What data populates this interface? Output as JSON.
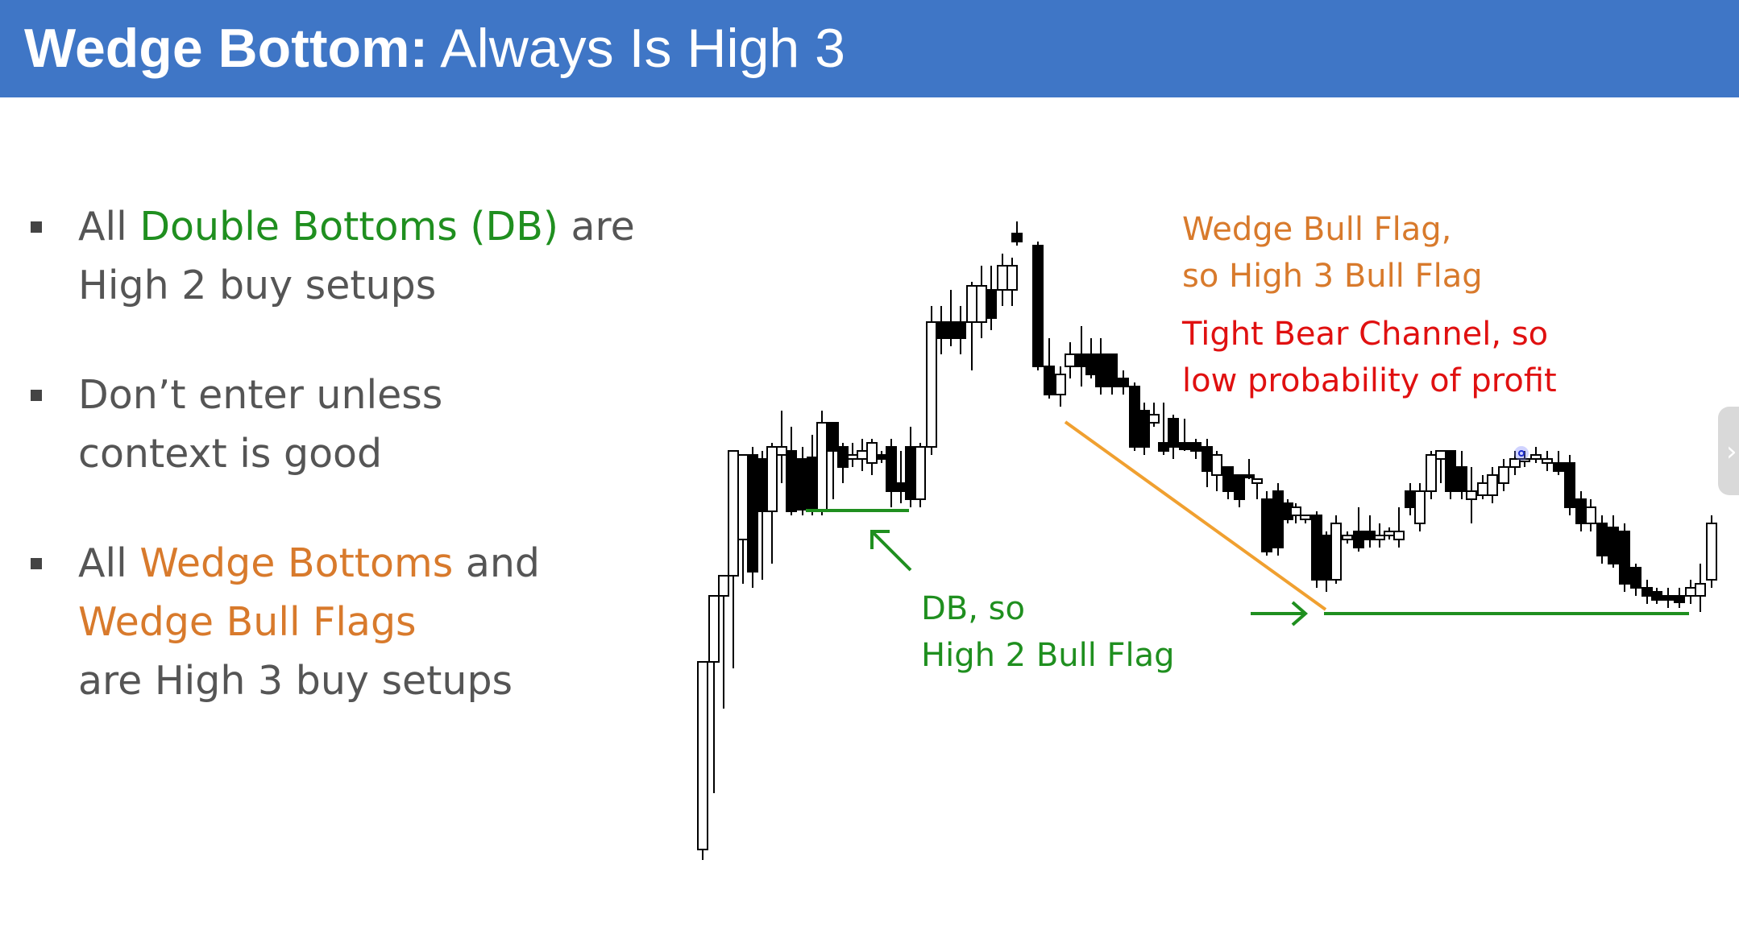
{
  "slide": {
    "title_bold": "Wedge Bottom:",
    "title_rest": " Always Is High 3"
  },
  "bullets": {
    "b1": {
      "p1": "All ",
      "p2": "Double Bottoms (DB)",
      "p3": " are",
      "line2": "High 2 buy setups"
    },
    "b2": {
      "line1": "Don’t enter unless",
      "line2": "context is good"
    },
    "b3": {
      "p1": "All ",
      "p2": "Wedge Bottoms",
      "p3": " and",
      "line2": "Wedge Bull Flags",
      "line3": "are High 3 buy setups"
    }
  },
  "annotations": {
    "wedge_flag_1": "Wedge Bull Flag,",
    "wedge_flag_2": "so High 3 Bull Flag",
    "bear_channel_1": "Tight Bear Channel, so",
    "bear_channel_2": "low probability of profit",
    "db_1": "DB, so",
    "db_2": "High 2 Bull Flag"
  },
  "colors": {
    "title_bar": "#3f76c6",
    "green": "#1f8f1f",
    "orange": "#d87a2c",
    "red": "#e01010",
    "text_gray": "#555555"
  },
  "icons": {
    "side_tab": "chevron-right-icon",
    "bullet": "square-bullet-icon"
  }
}
